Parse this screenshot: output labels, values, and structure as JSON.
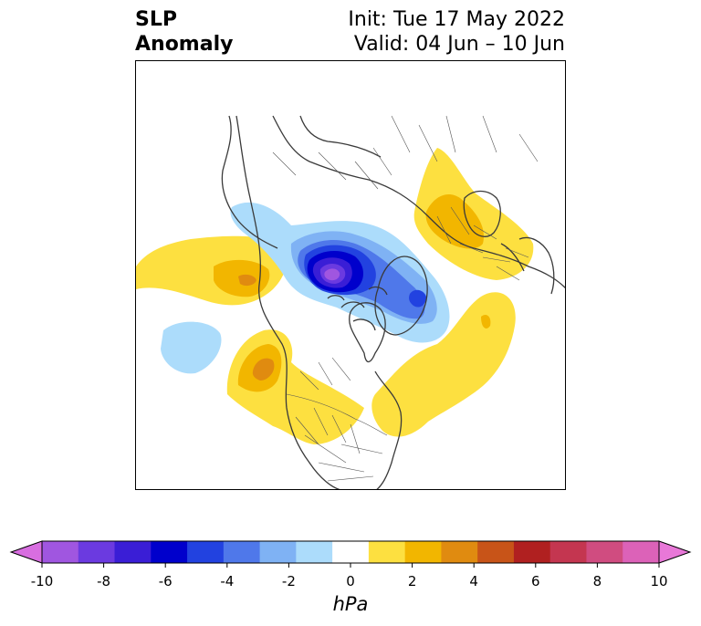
{
  "title": {
    "left_line1": "SLP",
    "left_line2": "Anomaly",
    "right_line1": "Init: Tue 17 May 2022",
    "right_line2": "Valid: 04 Jun – 10 Jun"
  },
  "colorbar": {
    "unit": "hPa",
    "ticks": [
      "-10",
      "-8",
      "-6",
      "-4",
      "-2",
      "0",
      "2",
      "4",
      "6",
      "8",
      "10"
    ],
    "bins": [
      {
        "value": -10,
        "color": "#d86ee0",
        "extend": "min"
      },
      {
        "value": -9,
        "color": "#a056e0"
      },
      {
        "value": -8,
        "color": "#6b3ae0"
      },
      {
        "value": -7,
        "color": "#3a1ed6"
      },
      {
        "value": -6,
        "color": "#0000cc"
      },
      {
        "value": -5,
        "color": "#2242e0"
      },
      {
        "value": -4,
        "color": "#4f78ea"
      },
      {
        "value": -3,
        "color": "#7fb2f4"
      },
      {
        "value": -2,
        "color": "#acdcfb"
      },
      {
        "value": 0,
        "color": "#ffffff"
      },
      {
        "value": 2,
        "color": "#fde040"
      },
      {
        "value": 3,
        "color": "#f2b600"
      },
      {
        "value": 4,
        "color": "#e08b10"
      },
      {
        "value": 5,
        "color": "#c85418"
      },
      {
        "value": 6,
        "color": "#b02020"
      },
      {
        "value": 7,
        "color": "#c43650"
      },
      {
        "value": 8,
        "color": "#d04c80"
      },
      {
        "value": 9,
        "color": "#dc62b8"
      },
      {
        "value": 10,
        "color": "#e878d8",
        "extend": "max"
      }
    ]
  },
  "map": {
    "projection": "polar stereographic",
    "colors": {
      "coast": "#3a3a3a",
      "border": "#555555"
    }
  }
}
